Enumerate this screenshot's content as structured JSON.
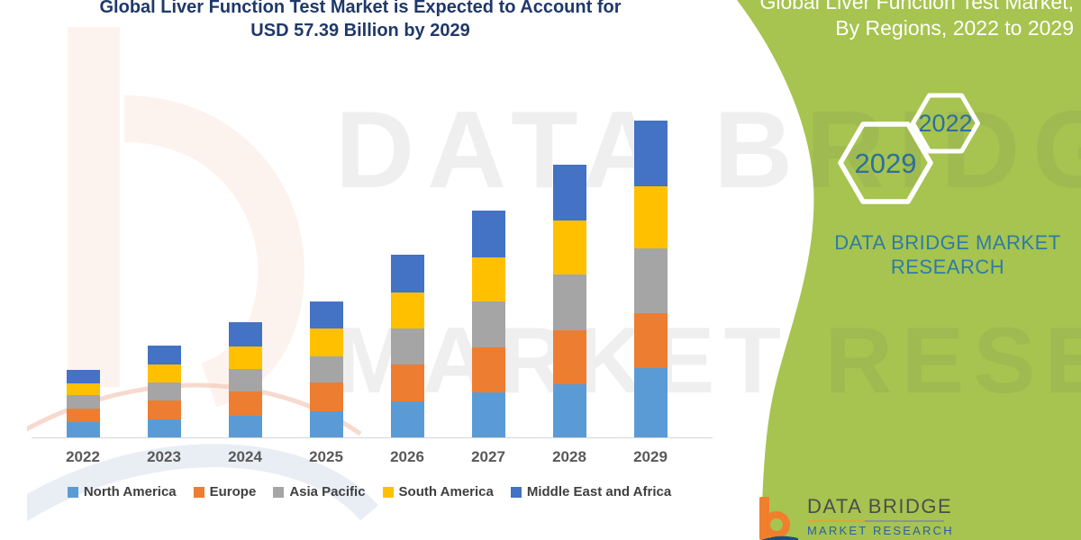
{
  "title": {
    "line1": "Global Liver Function Test Market is Expected to Account for",
    "line2": "USD 57.39 Billion by 2029"
  },
  "side_panel": {
    "heading_line1": "Global Liver Function Test Market,",
    "heading_line2": "By Regions, 2022 to 2029",
    "hexagons": [
      {
        "label": "2029"
      },
      {
        "label": "2022"
      }
    ],
    "brand_line1": "DATA BRIDGE MARKET",
    "brand_line2": "RESEARCH"
  },
  "watermark": {
    "line1": "DATA BRIDGE",
    "line2": "MARKET RESEARCH"
  },
  "footer_logo": {
    "name": "DATA BRIDGE",
    "subtitle": "MARKET RESEARCH"
  },
  "colors": {
    "green_panel": "#A6C44F",
    "title_navy": "#1F3969",
    "hex_year_blue": "#2C6F9E",
    "brand_teal": "#2E7CA6",
    "axis_label_gray": "#595959",
    "legend_text": "#3F3F3F"
  },
  "chart_data": {
    "type": "bar",
    "stacked": true,
    "title": "Global Liver Function Test Market is Expected to Account for USD 57.39 Billion by 2029",
    "unit": "USD Billion",
    "stated_total_2029": 57.39,
    "categories": [
      "2022",
      "2023",
      "2024",
      "2025",
      "2026",
      "2027",
      "2028",
      "2029"
    ],
    "series": [
      {
        "name": "North America",
        "color": "#5B9BD5",
        "values": [
          2.8,
          3.3,
          4.0,
          4.8,
          6.6,
          8.2,
          9.6,
          12.6
        ]
      },
      {
        "name": "Europe",
        "color": "#ED7D31",
        "values": [
          2.4,
          3.4,
          4.3,
          5.2,
          6.6,
          8.1,
          9.9,
          9.9
        ]
      },
      {
        "name": "Asia Pacific",
        "color": "#A5A5A5",
        "values": [
          2.5,
          3.3,
          4.1,
          4.7,
          6.5,
          8.4,
          10.1,
          11.8
        ]
      },
      {
        "name": "South America",
        "color": "#FFC000",
        "values": [
          2.1,
          3.3,
          4.1,
          5.1,
          6.5,
          8.0,
          9.7,
          11.2
        ]
      },
      {
        "name": "Middle East and Africa",
        "color": "#4472C4",
        "values": [
          2.5,
          3.4,
          4.4,
          4.9,
          6.9,
          8.4,
          10.2,
          11.9
        ]
      }
    ],
    "estimated_totals": [
      12.3,
      16.7,
      20.9,
      24.7,
      33.1,
      41.1,
      49.5,
      57.4
    ],
    "legend_position": "bottom",
    "grid": false,
    "note": "Series values estimated from stacked bar heights; 2029 total anchored to stated USD 57.39 billion."
  }
}
